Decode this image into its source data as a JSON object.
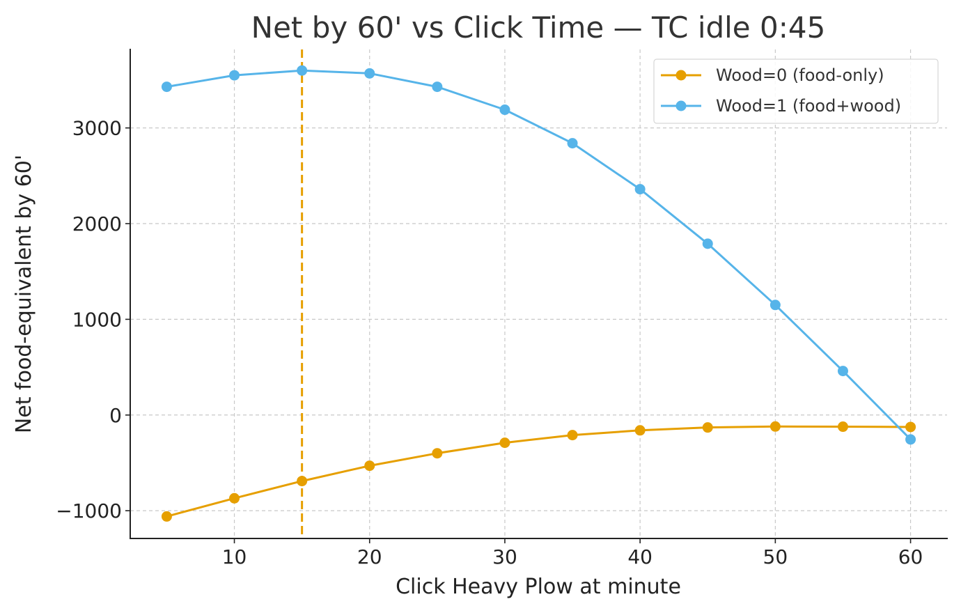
{
  "chart_data": {
    "type": "line",
    "title": "Net by 60' vs Click Time — TC idle 0:45",
    "xlabel": "Click Heavy Plow at minute",
    "ylabel": "Net food-equivalent by 60'",
    "x": [
      5,
      10,
      15,
      20,
      25,
      30,
      35,
      40,
      45,
      50,
      55,
      60
    ],
    "xlim": [
      2.3,
      62.7
    ],
    "ylim": [
      -1290,
      3820
    ],
    "xticks": [
      10,
      20,
      30,
      40,
      50,
      60
    ],
    "yticks": [
      -1000,
      0,
      1000,
      2000,
      3000
    ],
    "ytick_labels": [
      "−1000",
      "0",
      "1000",
      "2000",
      "3000"
    ],
    "grid": true,
    "legend_position": "top-right",
    "vline": {
      "x": 15,
      "color": "#E69F00",
      "style": "dashed"
    },
    "series": [
      {
        "name": "Wood=0 (food-only)",
        "color": "#E69F00",
        "values": [
          -1060,
          -870,
          -690,
          -530,
          -400,
          -290,
          -210,
          -160,
          -130,
          -120,
          -122,
          -125
        ]
      },
      {
        "name": "Wood=1 (food+wood)",
        "color": "#56B4E9",
        "values": [
          3430,
          3550,
          3600,
          3570,
          3430,
          3190,
          2840,
          2360,
          1790,
          1150,
          460,
          -255
        ]
      }
    ]
  }
}
